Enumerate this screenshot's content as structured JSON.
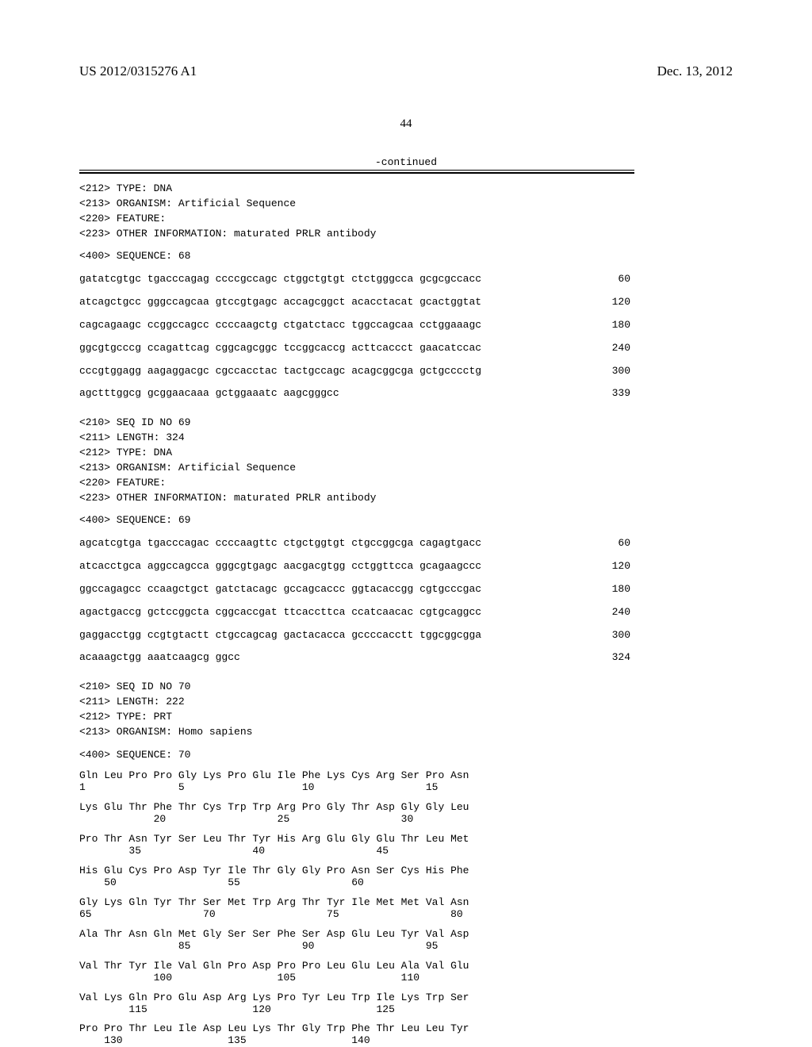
{
  "header": {
    "left": "US 2012/0315276 A1",
    "right": "Dec. 13, 2012"
  },
  "page_number": "44",
  "continued_label": "-continued",
  "seq68": {
    "meta": [
      "<212> TYPE: DNA",
      "<213> ORGANISM: Artificial Sequence",
      "<220> FEATURE:",
      "<223> OTHER INFORMATION: maturated PRLR antibody"
    ],
    "label": "<400> SEQUENCE: 68",
    "rows": [
      {
        "seq": "gatatcgtgc tgacccagag ccccgccagc ctggctgtgt ctctgggcca gcgcgccacc",
        "pos": "60"
      },
      {
        "seq": "atcagctgcc gggccagcaa gtccgtgagc accagcggct acacctacat gcactggtat",
        "pos": "120"
      },
      {
        "seq": "cagcagaagc ccggccagcc ccccaagctg ctgatctacc tggccagcaa cctggaaagc",
        "pos": "180"
      },
      {
        "seq": "ggcgtgcccg ccagattcag cggcagcggc tccggcaccg acttcaccct gaacatccac",
        "pos": "240"
      },
      {
        "seq": "cccgtggagg aagaggacgc cgccacctac tactgccagc acagcggcga gctgcccctg",
        "pos": "300"
      },
      {
        "seq": "agctttggcg gcggaacaaa gctggaaatc aagcgggcc",
        "pos": "339"
      }
    ]
  },
  "seq69": {
    "meta": [
      "<210> SEQ ID NO 69",
      "<211> LENGTH: 324",
      "<212> TYPE: DNA",
      "<213> ORGANISM: Artificial Sequence",
      "<220> FEATURE:",
      "<223> OTHER INFORMATION: maturated PRLR antibody"
    ],
    "label": "<400> SEQUENCE: 69",
    "rows": [
      {
        "seq": "agcatcgtga tgacccagac ccccaagttc ctgctggtgt ctgccggcga cagagtgacc",
        "pos": "60"
      },
      {
        "seq": "atcacctgca aggccagcca gggcgtgagc aacgacgtgg cctggttcca gcagaagccc",
        "pos": "120"
      },
      {
        "seq": "ggccagagcc ccaagctgct gatctacagc gccagcaccc ggtacaccgg cgtgcccgac",
        "pos": "180"
      },
      {
        "seq": "agactgaccg gctccggcta cggcaccgat ttcaccttca ccatcaacac cgtgcaggcc",
        "pos": "240"
      },
      {
        "seq": "gaggacctgg ccgtgtactt ctgccagcag gactacacca gccccacctt tggcggcgga",
        "pos": "300"
      },
      {
        "seq": "acaaagctgg aaatcaagcg ggcc",
        "pos": "324"
      }
    ]
  },
  "seq70": {
    "meta": [
      "<210> SEQ ID NO 70",
      "<211> LENGTH: 222",
      "<212> TYPE: PRT",
      "<213> ORGANISM: Homo sapiens"
    ],
    "label": "<400> SEQUENCE: 70",
    "protein_pairs": [
      {
        "aa": "Gln Leu Pro Pro Gly Lys Pro Glu Ile Phe Lys Cys Arg Ser Pro Asn",
        "num": "1               5                   10                  15"
      },
      {
        "aa": "Lys Glu Thr Phe Thr Cys Trp Trp Arg Pro Gly Thr Asp Gly Gly Leu",
        "num": "            20                  25                  30"
      },
      {
        "aa": "Pro Thr Asn Tyr Ser Leu Thr Tyr His Arg Glu Gly Glu Thr Leu Met",
        "num": "        35                  40                  45"
      },
      {
        "aa": "His Glu Cys Pro Asp Tyr Ile Thr Gly Gly Pro Asn Ser Cys His Phe",
        "num": "    50                  55                  60"
      },
      {
        "aa": "Gly Lys Gln Tyr Thr Ser Met Trp Arg Thr Tyr Ile Met Met Val Asn",
        "num": "65                  70                  75                  80"
      },
      {
        "aa": "Ala Thr Asn Gln Met Gly Ser Ser Phe Ser Asp Glu Leu Tyr Val Asp",
        "num": "                85                  90                  95"
      },
      {
        "aa": "Val Thr Tyr Ile Val Gln Pro Asp Pro Pro Leu Glu Leu Ala Val Glu",
        "num": "            100                 105                 110"
      },
      {
        "aa": "Val Lys Gln Pro Glu Asp Arg Lys Pro Tyr Leu Trp Ile Lys Trp Ser",
        "num": "        115                 120                 125"
      },
      {
        "aa": "Pro Pro Thr Leu Ile Asp Leu Lys Thr Gly Trp Phe Thr Leu Leu Tyr",
        "num": "    130                 135                 140"
      }
    ]
  }
}
